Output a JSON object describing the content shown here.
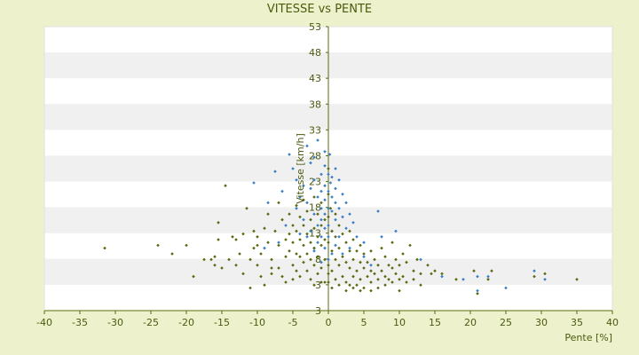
{
  "chart_data": {
    "type": "scatter",
    "title": "VITESSE vs PENTE",
    "xlabel": "Pente [%]",
    "ylabel": "Vitesse [km/h]",
    "xlim": [
      -40,
      40
    ],
    "ylim": [
      3,
      53
    ],
    "x_ticks": [
      "-40",
      "-35",
      "-30",
      "-25",
      "-20",
      "-15",
      "-10",
      "-5",
      "0",
      "5",
      "10",
      "15",
      "20",
      "25",
      "30",
      "35",
      "40"
    ],
    "y_ticks": [
      "3",
      "3",
      "8",
      "13",
      "18",
      "23",
      "28",
      "33",
      "38",
      "43",
      "48",
      "53"
    ],
    "grid": "horizontal bands",
    "legend": "none",
    "colors": {
      "background": "#eef2cc",
      "plot_band_light": "#ffffff",
      "plot_band_dark": "#f0f0f0",
      "axis": "#5a6a10",
      "text": "#4a5a10",
      "series_1": "#3b7ec8",
      "series_2": "#5a6a10"
    },
    "series": [
      {
        "marker": "diamond",
        "points": [
          [
            -10.5,
            25.5
          ],
          [
            -8.5,
            22
          ],
          [
            -7.5,
            27.5
          ],
          [
            -6.5,
            24
          ],
          [
            -5.5,
            30.5
          ],
          [
            -5,
            28
          ],
          [
            -4.5,
            26
          ],
          [
            -4.5,
            21
          ],
          [
            -4,
            23
          ],
          [
            -3.5,
            19
          ],
          [
            -3.5,
            25
          ],
          [
            -3,
            32
          ],
          [
            -3,
            22
          ],
          [
            -2.5,
            29
          ],
          [
            -2.5,
            17
          ],
          [
            -2.5,
            24.5
          ],
          [
            -2,
            26
          ],
          [
            -2,
            20
          ],
          [
            -2,
            14
          ],
          [
            -1.5,
            33
          ],
          [
            -1.5,
            23
          ],
          [
            -1.5,
            18
          ],
          [
            -1.5,
            15
          ],
          [
            -1,
            27
          ],
          [
            -1,
            24
          ],
          [
            -1,
            21
          ],
          [
            -1,
            19
          ],
          [
            -1,
            16
          ],
          [
            -0.5,
            28.5
          ],
          [
            -0.5,
            25
          ],
          [
            -0.5,
            22.5
          ],
          [
            -0.5,
            20
          ],
          [
            -0.5,
            17.5
          ],
          [
            -0.5,
            14
          ],
          [
            0,
            27
          ],
          [
            0,
            24
          ],
          [
            0,
            21
          ],
          [
            0,
            18
          ],
          [
            0,
            16
          ],
          [
            0.2,
            30.5
          ],
          [
            0.3,
            25.5
          ],
          [
            0.5,
            23
          ],
          [
            0.5,
            20.5
          ],
          [
            0.5,
            17
          ],
          [
            0.5,
            13
          ],
          [
            1,
            28
          ],
          [
            1,
            24.5
          ],
          [
            1,
            22
          ],
          [
            1,
            19
          ],
          [
            1.5,
            26
          ],
          [
            1.5,
            21
          ],
          [
            1.5,
            16
          ],
          [
            2,
            23.5
          ],
          [
            2,
            19.5
          ],
          [
            2.5,
            22
          ],
          [
            2.5,
            17.5
          ],
          [
            3,
            20
          ],
          [
            3.5,
            18.5
          ],
          [
            4,
            16
          ],
          [
            5,
            15
          ],
          [
            7,
            20.5
          ],
          [
            7.5,
            16
          ],
          [
            9.5,
            17
          ],
          [
            13,
            12
          ],
          [
            16,
            9
          ],
          [
            19,
            8.5
          ],
          [
            21,
            9
          ],
          [
            21,
            6.5
          ],
          [
            22.5,
            9
          ],
          [
            25,
            7
          ],
          [
            29,
            10
          ],
          [
            30.5,
            8.5
          ],
          [
            -4,
            16.5
          ],
          [
            -6,
            18
          ],
          [
            -9,
            14
          ],
          [
            -7,
            15
          ],
          [
            -3,
            16
          ],
          [
            -2,
            13.5
          ],
          [
            1,
            14.5
          ],
          [
            2,
            13
          ],
          [
            3,
            14
          ],
          [
            5,
            12.5
          ],
          [
            6,
            11
          ],
          [
            0,
            12
          ],
          [
            -1,
            11.5
          ],
          [
            -0.5,
            31
          ],
          [
            0.5,
            26.5
          ],
          [
            -2,
            30
          ]
        ]
      },
      {
        "marker": "diamond",
        "points": [
          [
            -31.5,
            14
          ],
          [
            -24,
            14.5
          ],
          [
            -22,
            13
          ],
          [
            -20,
            14.5
          ],
          [
            -19,
            9
          ],
          [
            -16.5,
            12
          ],
          [
            -16,
            12.5
          ],
          [
            -15.5,
            18.5
          ],
          [
            -15.5,
            15.5
          ],
          [
            -15,
            10.5
          ],
          [
            -14.5,
            25
          ],
          [
            -14,
            12
          ],
          [
            -13.5,
            16
          ],
          [
            -13,
            15.5
          ],
          [
            -12.5,
            13
          ],
          [
            -12,
            16.5
          ],
          [
            -11.5,
            21
          ],
          [
            -11,
            7
          ],
          [
            -11,
            12
          ],
          [
            -10.5,
            17
          ],
          [
            -10.5,
            14
          ],
          [
            -10,
            16
          ],
          [
            -10,
            11
          ],
          [
            -9.5,
            13
          ],
          [
            -9,
            17.5
          ],
          [
            -9,
            7.5
          ],
          [
            -8.5,
            20
          ],
          [
            -8.5,
            15
          ],
          [
            -8,
            12
          ],
          [
            -8,
            9.5
          ],
          [
            -7.5,
            17
          ],
          [
            -7,
            22
          ],
          [
            -7,
            14.5
          ],
          [
            -7,
            10.5
          ],
          [
            -6.5,
            19
          ],
          [
            -6,
            15.5
          ],
          [
            -6,
            12.5
          ],
          [
            -6,
            8
          ],
          [
            -5.5,
            20
          ],
          [
            -5.5,
            16.5
          ],
          [
            -5.5,
            13.5
          ],
          [
            -5,
            18
          ],
          [
            -5,
            15
          ],
          [
            -5,
            11
          ],
          [
            -4.5,
            21.5
          ],
          [
            -4.5,
            17
          ],
          [
            -4.5,
            13
          ],
          [
            -4.5,
            10
          ],
          [
            -4,
            19.5
          ],
          [
            -4,
            15.5
          ],
          [
            -4,
            12.5
          ],
          [
            -4,
            9
          ],
          [
            -3.5,
            22.5
          ],
          [
            -3.5,
            18
          ],
          [
            -3.5,
            14.5
          ],
          [
            -3.5,
            11.5
          ],
          [
            -3,
            20.5
          ],
          [
            -3,
            16.5
          ],
          [
            -3,
            13
          ],
          [
            -3,
            10
          ],
          [
            -2.5,
            19
          ],
          [
            -2.5,
            15
          ],
          [
            -2.5,
            12
          ],
          [
            -2.5,
            8.5
          ],
          [
            -2,
            23
          ],
          [
            -2,
            17.5
          ],
          [
            -2,
            14
          ],
          [
            -2,
            11
          ],
          [
            -1.5,
            20
          ],
          [
            -1.5,
            16
          ],
          [
            -1.5,
            12.5
          ],
          [
            -1.5,
            9.5
          ],
          [
            -1,
            22
          ],
          [
            -1,
            18
          ],
          [
            -1,
            14.5
          ],
          [
            -1,
            10.5
          ],
          [
            -0.5,
            19
          ],
          [
            -0.5,
            15.5
          ],
          [
            -0.5,
            12
          ],
          [
            -0.5,
            8
          ],
          [
            0,
            23.5
          ],
          [
            0,
            19.5
          ],
          [
            0,
            15
          ],
          [
            0,
            11
          ],
          [
            0,
            8
          ],
          [
            0,
            28
          ],
          [
            0.3,
            21
          ],
          [
            0.5,
            17
          ],
          [
            0.5,
            13.5
          ],
          [
            0.5,
            10
          ],
          [
            1,
            20
          ],
          [
            1,
            16
          ],
          [
            1,
            12
          ],
          [
            1,
            8.5
          ],
          [
            1.5,
            18
          ],
          [
            1.5,
            14
          ],
          [
            1.5,
            11
          ],
          [
            2,
            16.5
          ],
          [
            2,
            12.5
          ],
          [
            2,
            9
          ],
          [
            2.5,
            15
          ],
          [
            2.5,
            11.5
          ],
          [
            2.5,
            8
          ],
          [
            3,
            17
          ],
          [
            3,
            13.5
          ],
          [
            3,
            10.5
          ],
          [
            3,
            7.5
          ],
          [
            3.5,
            15.5
          ],
          [
            3.5,
            12
          ],
          [
            3.5,
            9
          ],
          [
            4,
            13.5
          ],
          [
            4,
            10
          ],
          [
            4,
            7.5
          ],
          [
            4.5,
            14.5
          ],
          [
            4.5,
            11.5
          ],
          [
            4.5,
            8.5
          ],
          [
            5,
            13
          ],
          [
            5,
            10.5
          ],
          [
            5,
            7
          ],
          [
            5.5,
            11.5
          ],
          [
            5.5,
            9
          ],
          [
            6,
            13.5
          ],
          [
            6,
            10
          ],
          [
            6,
            8
          ],
          [
            6.5,
            12
          ],
          [
            6.5,
            9.5
          ],
          [
            7,
            11
          ],
          [
            7,
            8.5
          ],
          [
            7.5,
            14
          ],
          [
            7.5,
            10
          ],
          [
            8,
            12.5
          ],
          [
            8,
            9
          ],
          [
            8,
            7.5
          ],
          [
            8.5,
            11
          ],
          [
            8.5,
            8.5
          ],
          [
            9,
            15
          ],
          [
            9,
            10.5
          ],
          [
            9,
            8
          ],
          [
            9.5,
            12
          ],
          [
            9.5,
            9.5
          ],
          [
            10,
            11
          ],
          [
            10,
            8.5
          ],
          [
            10,
            6.5
          ],
          [
            10.5,
            13
          ],
          [
            10.5,
            9
          ],
          [
            11,
            11.5
          ],
          [
            11,
            8
          ],
          [
            11.5,
            14.5
          ],
          [
            12,
            10
          ],
          [
            12,
            8.5
          ],
          [
            12.5,
            12
          ],
          [
            13,
            9.5
          ],
          [
            13,
            7.5
          ],
          [
            14,
            11
          ],
          [
            14.5,
            9.5
          ],
          [
            15,
            10
          ],
          [
            16,
            9.5
          ],
          [
            18,
            8.5
          ],
          [
            20.5,
            10
          ],
          [
            21,
            6
          ],
          [
            22.5,
            8.5
          ],
          [
            23,
            10
          ],
          [
            29,
            9
          ],
          [
            30.5,
            9.5
          ],
          [
            35,
            8.5
          ],
          [
            -1,
            8
          ],
          [
            0,
            9.5
          ],
          [
            -2,
            7.5
          ],
          [
            0.5,
            7
          ],
          [
            1.5,
            7.5
          ],
          [
            2.5,
            6.5
          ],
          [
            3.5,
            7
          ],
          [
            4.5,
            6.5
          ],
          [
            6,
            6.5
          ],
          [
            7,
            7
          ],
          [
            -5,
            8.5
          ],
          [
            -6.5,
            9
          ],
          [
            -8,
            10.5
          ],
          [
            -9.5,
            9
          ],
          [
            -12,
            9.5
          ],
          [
            -13,
            11
          ],
          [
            -16,
            11
          ],
          [
            -17.5,
            12
          ],
          [
            -10,
            14.5
          ]
        ]
      }
    ]
  }
}
